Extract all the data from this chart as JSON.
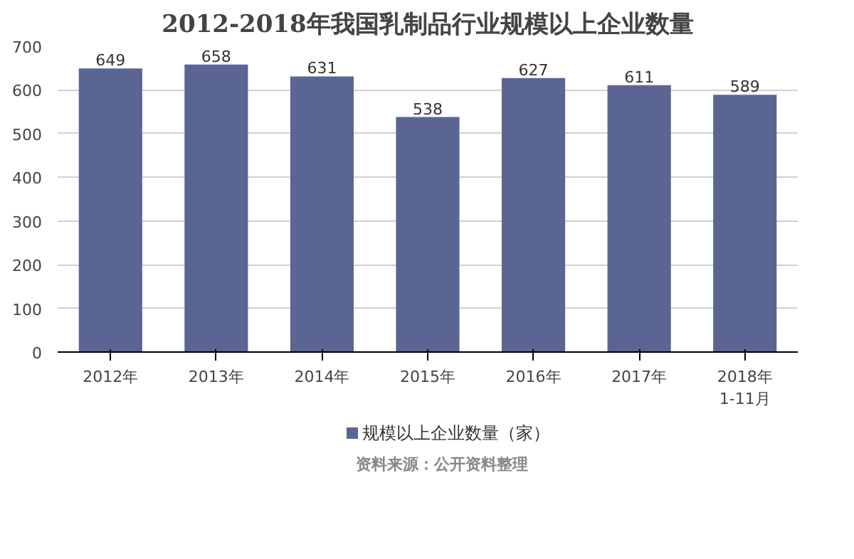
{
  "chart_data": {
    "type": "bar",
    "title": "2012-2018年我国乳制品行业规模以上企业数量",
    "categories": [
      "2012年",
      "2013年",
      "2014年",
      "2015年",
      "2016年",
      "2017年",
      "2018年\n1-11月"
    ],
    "series": [
      {
        "name": "规模以上企业数量（家）",
        "color": "#5b6594",
        "values": [
          649,
          658,
          631,
          538,
          627,
          611,
          589
        ]
      }
    ],
    "ylim": [
      0,
      700
    ],
    "yticks": [
      0,
      100,
      200,
      300,
      400,
      500,
      600,
      700
    ],
    "grid": "y",
    "legend": "bottom",
    "data_labels": true,
    "annotations": [
      "资料来源：公开资料整理"
    ]
  }
}
